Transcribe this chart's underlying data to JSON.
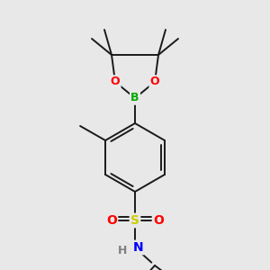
{
  "bg_color": "#e8e8e8",
  "line_color": "#1a1a1a",
  "bond_width": 1.4,
  "atom_colors": {
    "B": "#00aa00",
    "O": "#ff0000",
    "S": "#cccc00",
    "N": "#0000ff",
    "H": "#808080",
    "C": "#1a1a1a"
  },
  "font_size": 8
}
